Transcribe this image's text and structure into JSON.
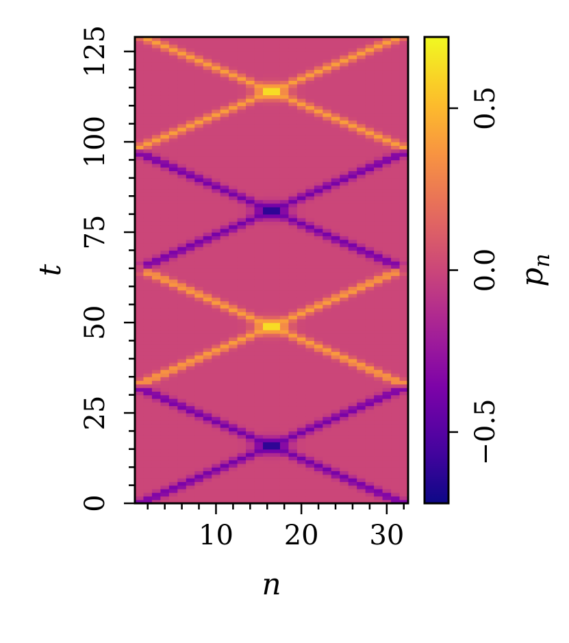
{
  "chart_data": {
    "type": "heatmap",
    "title": "",
    "xlabel": "n",
    "ylabel": "t",
    "colorbar_label": "p_n",
    "colormap": "plasma",
    "x": {
      "min": 1,
      "max": 32,
      "count": 32,
      "ticks": [
        10,
        20,
        30
      ],
      "tick_labels": [
        "10",
        "20",
        "30"
      ]
    },
    "y": {
      "min": 0,
      "max": 129,
      "ticks": [
        0,
        25,
        50,
        75,
        100,
        125
      ],
      "tick_labels": [
        "0",
        "25",
        "50",
        "75",
        "100",
        "125"
      ]
    },
    "clim": [
      -0.72,
      0.72
    ],
    "colorbar_ticks": [
      -0.5,
      0.0,
      0.5
    ],
    "colorbar_tick_labels": [
      "−0.5",
      "0.0",
      "0.5"
    ],
    "background_value": 0.0,
    "events": [
      {
        "t_center": 16,
        "n_center": 16.5,
        "t_start": 0,
        "t_end": 32,
        "sign": -1,
        "peak_value": -0.72
      },
      {
        "t_center": 49,
        "n_center": 16.5,
        "t_start": 33,
        "t_end": 65,
        "sign": 1,
        "peak_value": 0.72
      },
      {
        "t_center": 81,
        "n_center": 16.5,
        "t_start": 65,
        "t_end": 97,
        "sign": -1,
        "peak_value": -0.72
      },
      {
        "t_center": 114,
        "n_center": 16.5,
        "t_start": 98,
        "t_end": 129,
        "sign": 1,
        "peak_value": 0.72
      }
    ],
    "grid": false,
    "legend": "none"
  }
}
